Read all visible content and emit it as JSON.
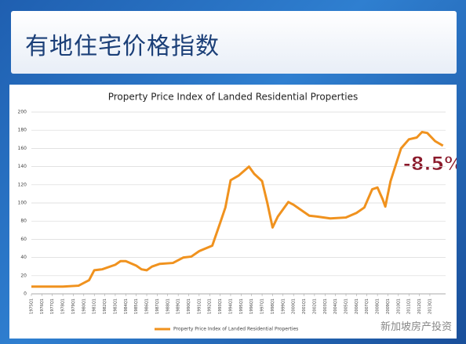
{
  "title_bar": "有地住宅价格指数",
  "watermark": "新加坡房产投资",
  "chart_data": {
    "type": "line",
    "title": "Property Price Index of Landed Residential Properties",
    "annotation": "-8.5%",
    "ylim": [
      0,
      200
    ],
    "yticks": [
      0,
      20,
      40,
      60,
      80,
      100,
      120,
      140,
      160,
      180,
      200
    ],
    "xlim": [
      1975,
      2014.5
    ],
    "xticks": [
      {
        "value": 1975,
        "label": "1975Q1"
      },
      {
        "value": 1976,
        "label": "1976Q1"
      },
      {
        "value": 1977,
        "label": "1977Q1"
      },
      {
        "value": 1978,
        "label": "1978Q1"
      },
      {
        "value": 1979,
        "label": "1979Q1"
      },
      {
        "value": 1980,
        "label": "1980Q1"
      },
      {
        "value": 1981,
        "label": "1981Q1"
      },
      {
        "value": 1982,
        "label": "1982Q1"
      },
      {
        "value": 1983,
        "label": "1983Q1"
      },
      {
        "value": 1984,
        "label": "1984Q1"
      },
      {
        "value": 1985,
        "label": "1985Q1"
      },
      {
        "value": 1986,
        "label": "1986Q1"
      },
      {
        "value": 1987,
        "label": "1987Q1"
      },
      {
        "value": 1988,
        "label": "1988Q1"
      },
      {
        "value": 1989,
        "label": "1989Q1"
      },
      {
        "value": 1990,
        "label": "1990Q1"
      },
      {
        "value": 1991,
        "label": "1991Q1"
      },
      {
        "value": 1992,
        "label": "1992Q1"
      },
      {
        "value": 1993,
        "label": "1993Q1"
      },
      {
        "value": 1994,
        "label": "1994Q1"
      },
      {
        "value": 1995,
        "label": "1995Q1"
      },
      {
        "value": 1996,
        "label": "1996Q1"
      },
      {
        "value": 1997,
        "label": "1997Q1"
      },
      {
        "value": 1998,
        "label": "1998Q1"
      },
      {
        "value": 1999,
        "label": "1999Q1"
      },
      {
        "value": 2000,
        "label": "2000Q1"
      },
      {
        "value": 2001,
        "label": "2001Q1"
      },
      {
        "value": 2002,
        "label": "2002Q1"
      },
      {
        "value": 2003,
        "label": "2003Q1"
      },
      {
        "value": 2004,
        "label": "2004Q1"
      },
      {
        "value": 2005,
        "label": "2005Q1"
      },
      {
        "value": 2006,
        "label": "2006Q1"
      },
      {
        "value": 2007,
        "label": "2007Q1"
      },
      {
        "value": 2008,
        "label": "2008Q1"
      },
      {
        "value": 2009,
        "label": "2009Q1"
      },
      {
        "value": 2010,
        "label": "2010Q1"
      },
      {
        "value": 2011,
        "label": "2011Q1"
      },
      {
        "value": 2012,
        "label": "2012Q1"
      },
      {
        "value": 2013,
        "label": "2013Q1"
      }
    ],
    "grid": true,
    "legend": "bottom",
    "x": [
      1975,
      1978,
      1979.5,
      1980.5,
      1981,
      1981.75,
      1983,
      1983.5,
      1984,
      1985,
      1985.5,
      1986,
      1986.5,
      1987.25,
      1988.5,
      1989.5,
      1990.25,
      1991,
      1992.25,
      1993,
      1993.5,
      1994,
      1994.75,
      1995.75,
      1996.25,
      1997,
      1997.5,
      1998,
      1998.5,
      1999.5,
      2000,
      2001.5,
      2002.25,
      2003.5,
      2005,
      2006,
      2006.75,
      2007.5,
      2008,
      2008.5,
      2008.75,
      2009.25,
      2010.25,
      2011,
      2011.75,
      2012.25,
      2012.75,
      2013.5,
      2014.25
    ],
    "series": [
      {
        "name": "Property Price Index of Landed Residential Properties",
        "color": "#f0921e",
        "values": [
          8,
          8,
          9,
          15,
          26,
          27,
          32,
          36,
          36,
          31,
          27,
          26,
          30,
          33,
          34,
          40,
          41,
          47,
          53,
          78,
          95,
          125,
          130,
          140,
          132,
          124,
          100,
          73,
          85,
          101,
          98,
          86,
          85,
          83,
          84,
          89,
          95,
          115,
          117,
          104,
          96,
          124,
          160,
          170,
          172,
          178,
          177,
          168,
          163
        ]
      }
    ]
  }
}
